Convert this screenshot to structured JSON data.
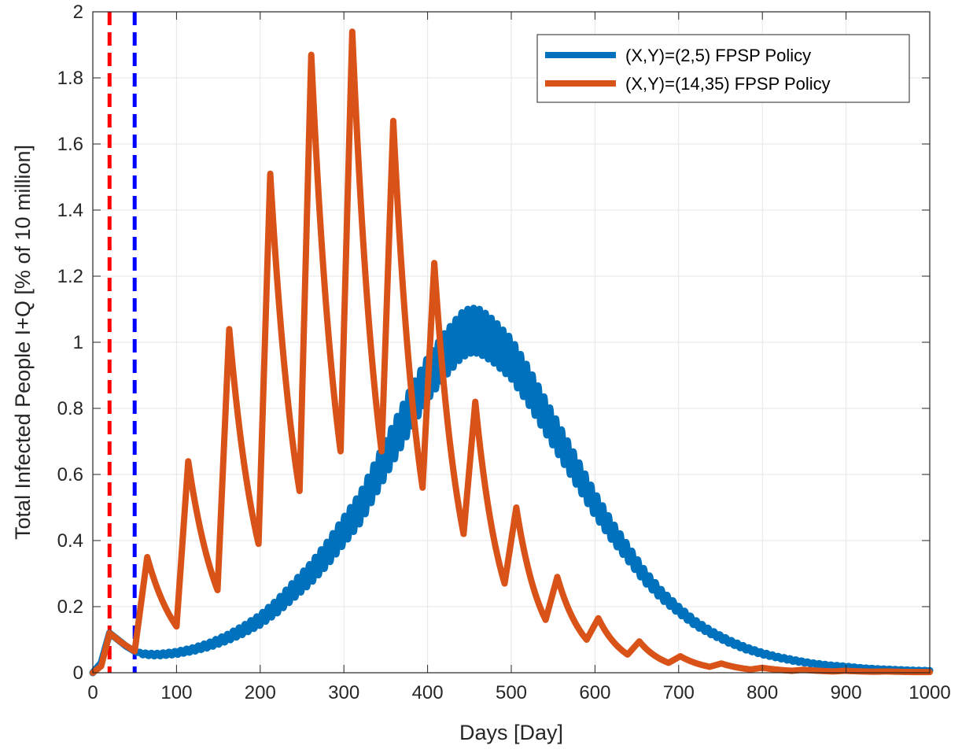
{
  "chart_data": {
    "type": "line",
    "title": "",
    "xlabel": "Days [Day]",
    "ylabel": "Total Infected People I+Q [% of 10 million]",
    "xlim": [
      0,
      1000
    ],
    "ylim": [
      0,
      2
    ],
    "xticks": [
      0,
      100,
      200,
      300,
      400,
      500,
      600,
      700,
      800,
      900,
      1000
    ],
    "yticks": [
      0,
      0.2,
      0.4,
      0.6,
      0.8,
      1,
      1.2,
      1.4,
      1.6,
      1.8,
      2
    ],
    "xtick_labels": [
      "0",
      "100",
      "200",
      "300",
      "400",
      "500",
      "600",
      "700",
      "800",
      "900",
      "1000"
    ],
    "ytick_labels": [
      "0",
      "0.2",
      "0.4",
      "0.6",
      "0.8",
      "1",
      "1.2",
      "1.4",
      "1.6",
      "1.8",
      "2"
    ],
    "grid": true,
    "legend_position": "top-right",
    "series": [
      {
        "name": "(X,Y)=(2,5) FPSP Policy",
        "color": "#0072BD",
        "style": "oscillating-band",
        "x": [
          0,
          10,
          20,
          30,
          40,
          50,
          60,
          70,
          80,
          100,
          120,
          140,
          160,
          180,
          200,
          220,
          240,
          260,
          280,
          300,
          320,
          340,
          360,
          380,
          400,
          420,
          440,
          450,
          460,
          470,
          480,
          500,
          520,
          540,
          560,
          580,
          600,
          620,
          640,
          660,
          680,
          700,
          720,
          740,
          760,
          780,
          800,
          820,
          840,
          860,
          880,
          900,
          920,
          940,
          960,
          980,
          1000
        ],
        "y": [
          0,
          0.03,
          0.12,
          0.1,
          0.08,
          0.065,
          0.057,
          0.055,
          0.055,
          0.06,
          0.07,
          0.085,
          0.105,
          0.13,
          0.16,
          0.2,
          0.25,
          0.3,
          0.36,
          0.43,
          0.5,
          0.6,
          0.7,
          0.8,
          0.89,
          0.96,
          1.02,
          1.035,
          1.035,
          1.02,
          1.0,
          0.95,
          0.87,
          0.78,
          0.69,
          0.6,
          0.51,
          0.43,
          0.36,
          0.29,
          0.235,
          0.19,
          0.15,
          0.12,
          0.095,
          0.074,
          0.058,
          0.046,
          0.036,
          0.028,
          0.022,
          0.018,
          0.014,
          0.011,
          0.009,
          0.007,
          0.006
        ],
        "band_amplitude": [
          0,
          0,
          0,
          0,
          0,
          0,
          0.003,
          0.004,
          0.004,
          0.005,
          0.006,
          0.008,
          0.01,
          0.013,
          0.016,
          0.02,
          0.025,
          0.03,
          0.035,
          0.04,
          0.045,
          0.05,
          0.055,
          0.06,
          0.063,
          0.066,
          0.068,
          0.068,
          0.068,
          0.066,
          0.064,
          0.06,
          0.055,
          0.05,
          0.045,
          0.04,
          0.034,
          0.028,
          0.023,
          0.018,
          0.014,
          0.011,
          0.009,
          0.007,
          0.006,
          0.005,
          0.004,
          0.003,
          0.003,
          0.002,
          0.002,
          0.002,
          0.001,
          0.001,
          0.001,
          0.001,
          0.001
        ]
      },
      {
        "name": "(X,Y)=(14,35) FPSP Policy",
        "color": "#D95319",
        "style": "line",
        "x": [
          0,
          10,
          20,
          35,
          50,
          65,
          100,
          114,
          149,
          163,
          198,
          212,
          247,
          261,
          296,
          310,
          345,
          359,
          394,
          408,
          443,
          457,
          492,
          506,
          541,
          555,
          590,
          604,
          639,
          653,
          688,
          702,
          737,
          751,
          786,
          800,
          835,
          849,
          884,
          898,
          933,
          947,
          982,
          1000
        ],
        "y": [
          0,
          0.02,
          0.12,
          0.09,
          0.065,
          0.35,
          0.14,
          0.64,
          0.25,
          1.04,
          0.39,
          1.51,
          0.55,
          1.87,
          0.67,
          1.94,
          0.67,
          1.67,
          0.56,
          1.24,
          0.42,
          0.82,
          0.27,
          0.5,
          0.16,
          0.29,
          0.1,
          0.165,
          0.055,
          0.095,
          0.03,
          0.05,
          0.018,
          0.028,
          0.01,
          0.015,
          0.006,
          0.009,
          0.004,
          0.006,
          0.003,
          0.004,
          0.002,
          0.002
        ]
      }
    ],
    "vertical_lines": [
      {
        "x": 20,
        "color": "#FF0000",
        "style": "dashed"
      },
      {
        "x": 50,
        "color": "#0000FF",
        "style": "dashed"
      }
    ]
  }
}
